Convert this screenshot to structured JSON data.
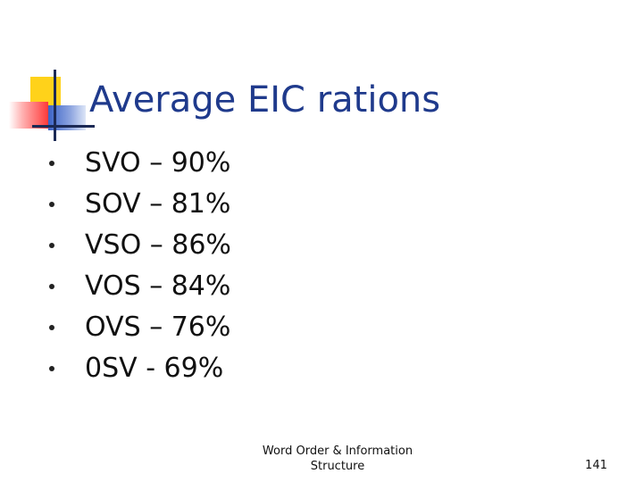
{
  "slide": {
    "title": "Average EIC rations",
    "bullets": [
      "SVO – 90%",
      "SOV – 81%",
      "VSO – 86%",
      "VOS – 84%",
      "OVS – 76%",
      "0SV -  69%"
    ],
    "footer": {
      "line1": "Word Order & Information",
      "line2": "Structure",
      "page_number": "141"
    }
  },
  "colors": {
    "title": "#1f3a8c",
    "accent_yellow": "#ffd21a",
    "accent_red": "#ff3a3a",
    "accent_blue": "#3b63c7"
  }
}
